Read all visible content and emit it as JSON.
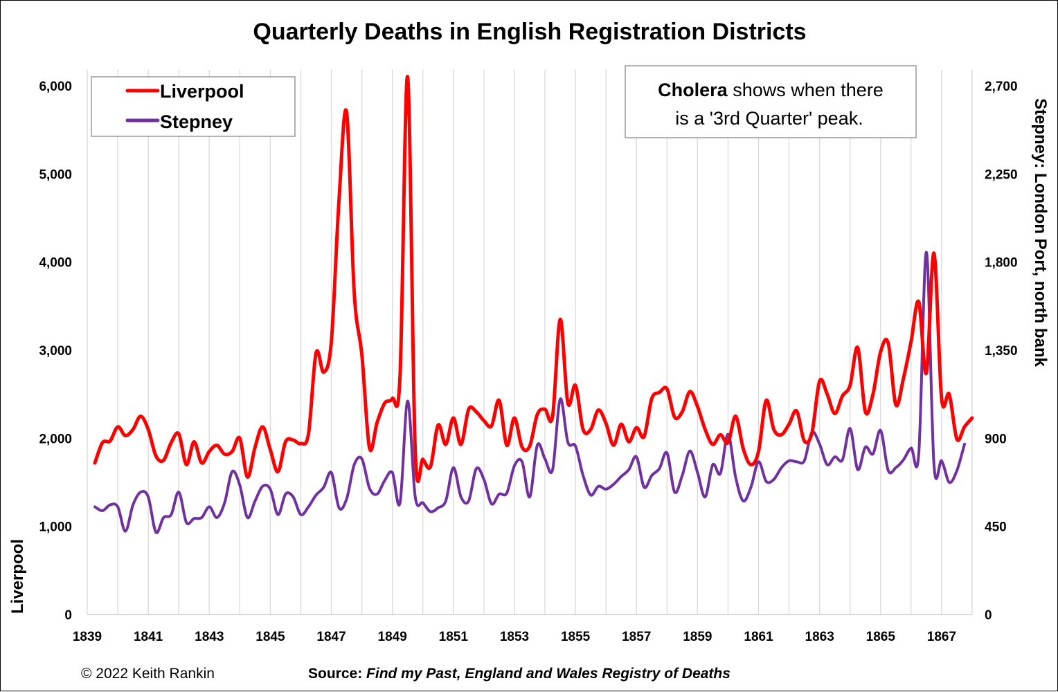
{
  "chart_data": {
    "type": "line",
    "title": "Quarterly Deaths in English Registration Districts",
    "ylabel_left": "Liverpool",
    "ylabel_right_bold": "Stepney",
    "ylabel_right_rest": ": London Port, north bank",
    "ylim_left": [
      0,
      6000
    ],
    "ylim_right": [
      0,
      2700
    ],
    "yticks_left": [
      "0",
      "1,000",
      "2,000",
      "3,000",
      "4,000",
      "5,000",
      "6,000"
    ],
    "yticks_right": [
      "0",
      "450",
      "900",
      "1,350",
      "1,800",
      "2,250",
      "2,700"
    ],
    "xticks": [
      "1839",
      "1841",
      "1843",
      "1845",
      "1847",
      "1849",
      "1851",
      "1853",
      "1855",
      "1857",
      "1859",
      "1861",
      "1863",
      "1865",
      "1867"
    ],
    "x_start": 1839.0,
    "x_end": 1868.0,
    "gridlines": "vertical",
    "legend_position": "top-left",
    "series": [
      {
        "name": "Liverpool",
        "axis": "left",
        "color": "#ff0000",
        "start": 1839.25,
        "values": [
          1720,
          1950,
          1970,
          2130,
          2030,
          2100,
          2250,
          2100,
          1800,
          1750,
          1950,
          2050,
          1700,
          1960,
          1720,
          1850,
          1920,
          1820,
          1850,
          2000,
          1560,
          1900,
          2130,
          1870,
          1620,
          1960,
          1980,
          1940,
          2050,
          2970,
          2750,
          3100,
          4700,
          5700,
          3650,
          2950,
          1890,
          2180,
          2400,
          2450,
          2700,
          6100,
          1850,
          1760,
          1680,
          2150,
          1930,
          2230,
          1930,
          2330,
          2300,
          2200,
          2140,
          2430,
          1920,
          2230,
          1900,
          1910,
          2270,
          2330,
          2250,
          3350,
          2400,
          2600,
          2100,
          2100,
          2320,
          2170,
          1920,
          2160,
          1960,
          2120,
          2020,
          2450,
          2520,
          2560,
          2240,
          2300,
          2530,
          2360,
          2100,
          1930,
          2040,
          1950,
          2250,
          1880,
          1700,
          1850,
          2430,
          2100,
          2040,
          2160,
          2310,
          1970,
          2060,
          2650,
          2500,
          2280,
          2480,
          2600,
          3030,
          2300,
          2500,
          2980,
          3080,
          2380,
          2680,
          3100,
          3550,
          2740,
          4100,
          2450,
          2500,
          1990,
          2130,
          2230
        ]
      },
      {
        "name": "Stepney",
        "axis": "right",
        "color": "#7030a0",
        "start": 1839.25,
        "values": [
          550,
          530,
          560,
          550,
          425,
          560,
          625,
          600,
          420,
          495,
          510,
          625,
          470,
          490,
          495,
          550,
          495,
          570,
          730,
          660,
          495,
          580,
          655,
          640,
          510,
          615,
          600,
          510,
          550,
          610,
          650,
          725,
          545,
          590,
          765,
          795,
          645,
          615,
          685,
          725,
          570,
          1090,
          600,
          570,
          525,
          545,
          580,
          750,
          600,
          580,
          745,
          690,
          565,
          615,
          620,
          760,
          780,
          600,
          865,
          795,
          740,
          1100,
          880,
          860,
          710,
          610,
          655,
          640,
          665,
          705,
          740,
          805,
          650,
          710,
          745,
          825,
          625,
          710,
          835,
          725,
          600,
          765,
          720,
          920,
          700,
          580,
          650,
          780,
          680,
          690,
          750,
          785,
          780,
          785,
          930,
          870,
          765,
          805,
          790,
          950,
          740,
          855,
          820,
          940,
          735,
          750,
          790,
          850,
          820,
          1850,
          765,
          785,
          675,
          735,
          870
        ]
      }
    ]
  },
  "legend": {
    "items": [
      {
        "label": "Liverpool",
        "color": "#ff0000"
      },
      {
        "label": "Stepney",
        "color": "#7030a0"
      }
    ]
  },
  "annotation": {
    "bold": "Cholera",
    "rest_line1": " shows when there",
    "line2": "is a '3rd Quarter' peak."
  },
  "footer": {
    "copyright": "© 2022 Keith Rankin",
    "source_label": "Source:",
    "source_text": "Find my Past, England and Wales Registry of Deaths"
  }
}
